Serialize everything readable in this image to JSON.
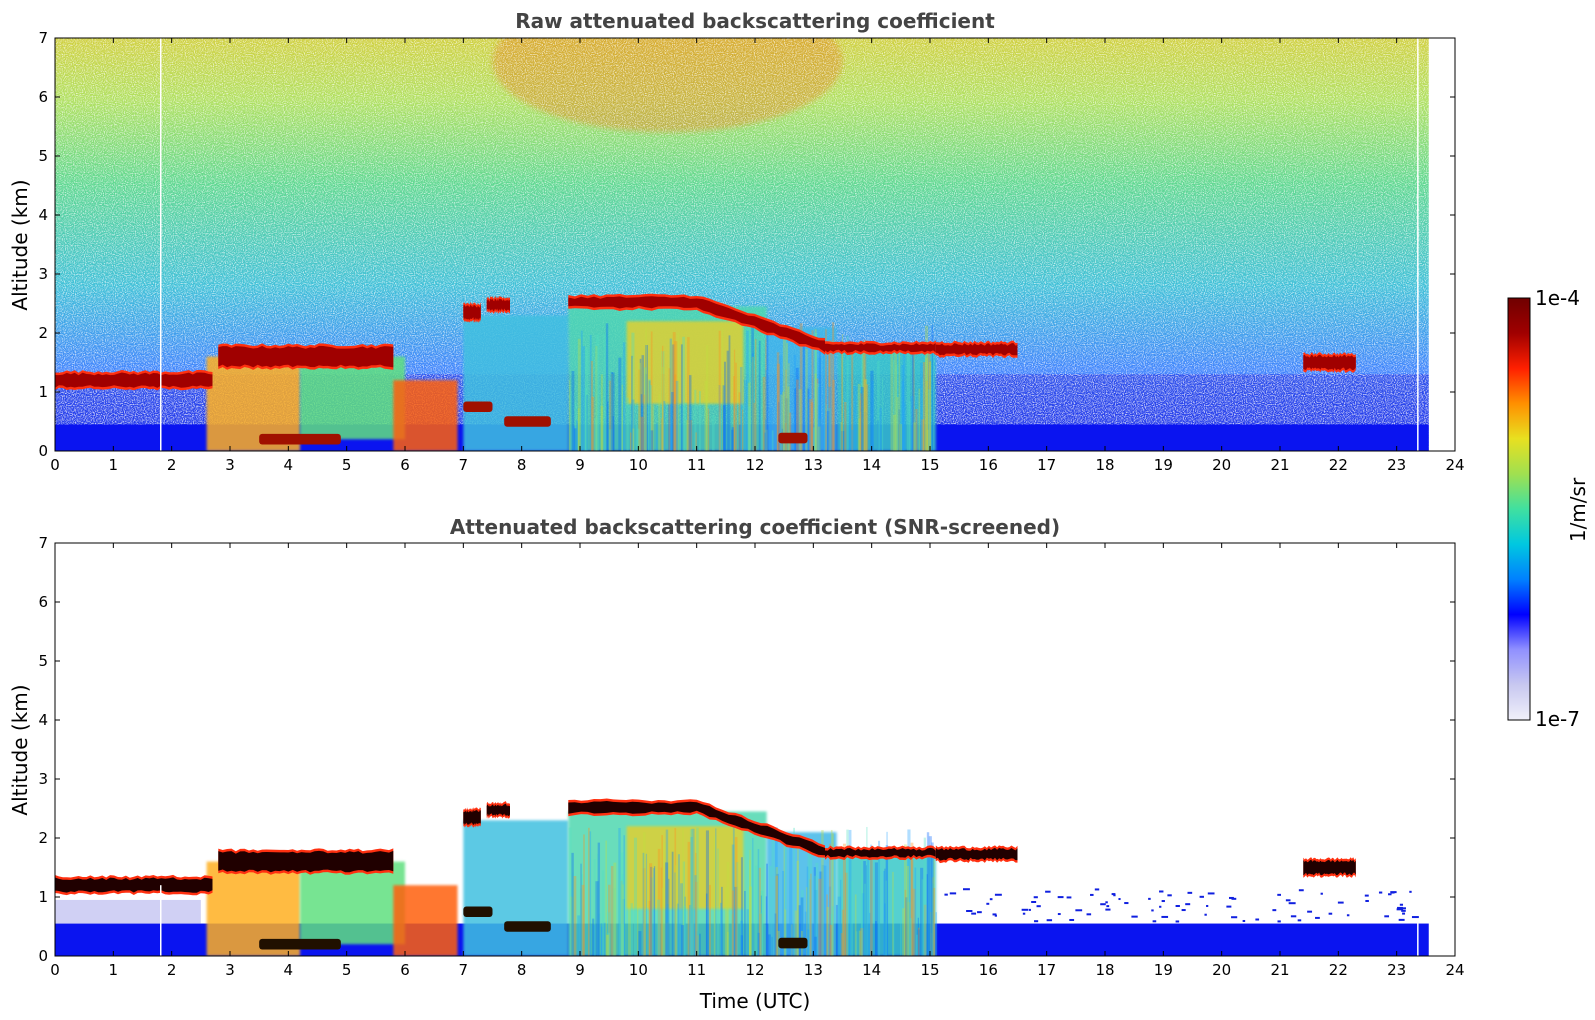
{
  "chart_data": [
    {
      "type": "heatmap",
      "title": "Raw attenuated backscattering coefficient",
      "xlabel": "",
      "ylabel": "Altitude (km)",
      "xlim": [
        0,
        24
      ],
      "ylim": [
        0,
        7
      ],
      "xticks": [
        0,
        1,
        2,
        3,
        4,
        5,
        6,
        7,
        8,
        9,
        10,
        11,
        12,
        13,
        14,
        15,
        16,
        17,
        18,
        19,
        20,
        21,
        22,
        23,
        24
      ],
      "yticks": [
        0,
        1,
        2,
        3,
        4,
        5,
        6,
        7
      ],
      "data_end_time": 23.55,
      "cloud_layers": [
        {
          "t": [
            0.0,
            2.7
          ],
          "alt": [
            1.05,
            1.35
          ]
        },
        {
          "t": [
            2.8,
            5.8
          ],
          "alt": [
            1.4,
            1.8
          ]
        },
        {
          "t": [
            7.0,
            7.3
          ],
          "alt": [
            2.2,
            2.5
          ]
        },
        {
          "t": [
            7.4,
            7.8
          ],
          "alt": [
            2.35,
            2.6
          ]
        },
        {
          "t": [
            8.8,
            13.2
          ],
          "alt": [
            2.4,
            2.65
          ]
        },
        {
          "t": [
            13.2,
            15.1
          ],
          "alt": [
            1.65,
            1.85
          ]
        },
        {
          "t": [
            15.1,
            16.5
          ],
          "alt": [
            1.6,
            1.85
          ]
        },
        {
          "t": [
            21.4,
            22.3
          ],
          "alt": [
            1.35,
            1.65
          ]
        }
      ]
    },
    {
      "type": "heatmap",
      "title": "Attenuated backscattering coefficient (SNR-screened)",
      "xlabel": "Time (UTC)",
      "ylabel": "Altitude (km)",
      "xlim": [
        0,
        24
      ],
      "ylim": [
        0,
        7
      ],
      "xticks": [
        0,
        1,
        2,
        3,
        4,
        5,
        6,
        7,
        8,
        9,
        10,
        11,
        12,
        13,
        14,
        15,
        16,
        17,
        18,
        19,
        20,
        21,
        22,
        23,
        24
      ],
      "yticks": [
        0,
        1,
        2,
        3,
        4,
        5,
        6,
        7
      ],
      "data_end_time": 23.55
    }
  ],
  "colorbar": {
    "label": "1/m/sr",
    "max_label": "1e-4",
    "min_label": "1e-7",
    "colormap": "jet",
    "colors": [
      "#f0f0fa",
      "#c8c8f0",
      "#9090ff",
      "#0000ff",
      "#0080ff",
      "#00c8e0",
      "#40e0a0",
      "#a0e050",
      "#e8e020",
      "#ff9000",
      "#ff2000",
      "#a00000",
      "#700000"
    ]
  }
}
